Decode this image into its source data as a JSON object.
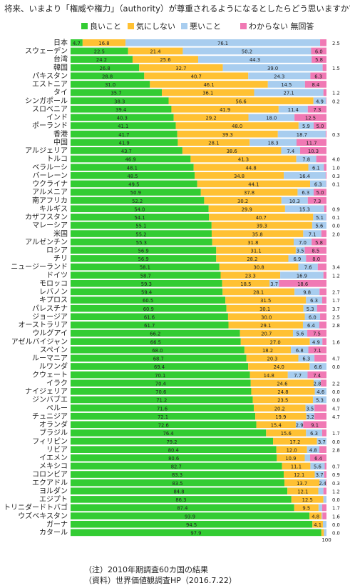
{
  "title": "将来、いまより「権威や権力」（authority）が尊重されるようになるとしたらどう思いますか？",
  "notes": {
    "note": "（注）2010年期調査60カ国の結果",
    "source": "（資料）世界価値観調査HP（2016.7.22）"
  },
  "chart_data": {
    "type": "bar",
    "stacked": true,
    "orientation": "horizontal",
    "percent_scale": true,
    "legend_position": "top",
    "series": [
      {
        "name": "良いこと",
        "color": "#33cc33"
      },
      {
        "name": "気にしない",
        "color": "#ffc133"
      },
      {
        "name": "悪いこと",
        "color": "#a8cdef"
      },
      {
        "name": "わからない 無回答",
        "color": "#f079b4"
      }
    ],
    "rows": [
      {
        "country": "日本",
        "values": [
          4.7,
          16.8,
          76.1,
          2.5
        ]
      },
      {
        "country": "スウェーデン",
        "values": [
          22.5,
          21.4,
          50.2,
          6.0
        ]
      },
      {
        "country": "台湾",
        "values": [
          24.2,
          25.6,
          44.3,
          5.8
        ]
      },
      {
        "country": "韓国",
        "values": [
          26.8,
          32.7,
          39.0,
          1.5
        ]
      },
      {
        "country": "パキスタン",
        "values": [
          28.8,
          40.7,
          24.3,
          6.3
        ]
      },
      {
        "country": "エストニア",
        "values": [
          31.0,
          46.1,
          14.5,
          8.4
        ]
      },
      {
        "country": "タイ",
        "values": [
          35.7,
          36.1,
          27.1,
          1.2
        ]
      },
      {
        "country": "シンガポール",
        "values": [
          38.3,
          56.6,
          4.9,
          0.2
        ]
      },
      {
        "country": "スロベニア",
        "values": [
          39.4,
          41.9,
          11.4,
          7.3
        ]
      },
      {
        "country": "インド",
        "values": [
          40.3,
          29.2,
          18.0,
          12.5
        ]
      },
      {
        "country": "ポーランド",
        "values": [
          41.1,
          48.0,
          5.9,
          5.0
        ]
      },
      {
        "country": "香港",
        "values": [
          41.7,
          39.3,
          18.7,
          0.3
        ]
      },
      {
        "country": "中国",
        "values": [
          41.9,
          28.1,
          18.3,
          11.7
        ]
      },
      {
        "country": "アルジェリア",
        "values": [
          43.7,
          38.6,
          7.4,
          10.3
        ]
      },
      {
        "country": "トルコ",
        "values": [
          46.9,
          41.3,
          7.8,
          4.0
        ]
      },
      {
        "country": "ベラルーシ",
        "values": [
          48.1,
          44.8,
          6.1,
          1.0
        ]
      },
      {
        "country": "バーレーン",
        "values": [
          48.5,
          34.8,
          16.4,
          0.3
        ]
      },
      {
        "country": "ウクライナ",
        "values": [
          49.5,
          44.1,
          6.3,
          0.1
        ]
      },
      {
        "country": "アルメニア",
        "values": [
          50.9,
          37.8,
          6.3,
          5.0
        ]
      },
      {
        "country": "南アフリカ",
        "values": [
          52.2,
          30.2,
          10.3,
          7.3
        ]
      },
      {
        "country": "キルギス",
        "values": [
          54.0,
          29.9,
          15.3,
          0.9
        ]
      },
      {
        "country": "カザフスタン",
        "values": [
          54.1,
          40.7,
          5.1,
          0.1
        ]
      },
      {
        "country": "マレーシア",
        "values": [
          55.1,
          39.3,
          5.6,
          0.0
        ]
      },
      {
        "country": "米国",
        "values": [
          55.2,
          35.8,
          7.1,
          2.0
        ]
      },
      {
        "country": "アルゼンチン",
        "values": [
          55.3,
          31.8,
          7.0,
          5.8
        ]
      },
      {
        "country": "ロシア",
        "values": [
          56.9,
          31.1,
          3.5,
          8.5
        ]
      },
      {
        "country": "チリ",
        "values": [
          56.9,
          28.2,
          6.9,
          8.0
        ]
      },
      {
        "country": "ニュージーランド",
        "values": [
          58.1,
          30.8,
          7.6,
          3.4
        ]
      },
      {
        "country": "ドイツ",
        "values": [
          58.7,
          23.3,
          16.9,
          1.2
        ]
      },
      {
        "country": "モロッコ",
        "values": [
          59.3,
          18.5,
          3.7,
          18.6
        ]
      },
      {
        "country": "レバノン",
        "values": [
          59.4,
          28.1,
          9.8,
          2.7
        ]
      },
      {
        "country": "キプロス",
        "values": [
          60.5,
          31.5,
          6.3,
          1.7
        ]
      },
      {
        "country": "パレスチナ",
        "values": [
          60.9,
          30.1,
          5.3,
          3.7
        ]
      },
      {
        "country": "ジョージア",
        "values": [
          61.6,
          30.0,
          6.0,
          2.5
        ]
      },
      {
        "country": "オーストラリア",
        "values": [
          61.7,
          29.1,
          6.4,
          2.8
        ]
      },
      {
        "country": "ウルグアイ",
        "values": [
          66.2,
          20.7,
          5.6,
          7.5
        ]
      },
      {
        "country": "アゼルバイジャン",
        "values": [
          66.5,
          27.0,
          4.9,
          1.6
        ]
      },
      {
        "country": "スペイン",
        "values": [
          68.0,
          18.2,
          6.8,
          7.1
        ]
      },
      {
        "country": "ルーマニア",
        "values": [
          68.7,
          20.3,
          6.3,
          4.7
        ]
      },
      {
        "country": "ルワンダ",
        "values": [
          69.4,
          24.0,
          6.6,
          0.0
        ]
      },
      {
        "country": "クウェート",
        "values": [
          70.1,
          14.8,
          7.7,
          7.4
        ]
      },
      {
        "country": "イラク",
        "values": [
          70.4,
          24.6,
          2.8,
          2.2
        ]
      },
      {
        "country": "ナイジェリア",
        "values": [
          70.6,
          24.8,
          4.6,
          0.0
        ]
      },
      {
        "country": "ジンバブエ",
        "values": [
          71.2,
          23.5,
          5.3,
          0.0
        ]
      },
      {
        "country": "ペルー",
        "values": [
          71.6,
          20.2,
          3.5,
          4.7
        ]
      },
      {
        "country": "チュニジア",
        "values": [
          72.1,
          19.9,
          3.2,
          4.7
        ]
      },
      {
        "country": "オランダ",
        "values": [
          72.6,
          15.4,
          2.9,
          9.1
        ]
      },
      {
        "country": "ブラジル",
        "values": [
          76.4,
          15.6,
          6.3,
          1.7
        ]
      },
      {
        "country": "フィリピン",
        "values": [
          79.2,
          17.2,
          3.7,
          0.0
        ]
      },
      {
        "country": "リビア",
        "values": [
          80.4,
          12.0,
          4.8,
          2.8
        ]
      },
      {
        "country": "イエメン",
        "values": [
          80.6,
          10.9,
          2.1,
          6.4
        ]
      },
      {
        "country": "メキシコ",
        "values": [
          82.7,
          11.1,
          5.6,
          0.7
        ]
      },
      {
        "country": "コロンビア",
        "values": [
          83.3,
          12.1,
          3.7,
          0.9
        ]
      },
      {
        "country": "エクアドル",
        "values": [
          83.5,
          13.7,
          2.4,
          0.3
        ]
      },
      {
        "country": "ヨルダン",
        "values": [
          84.8,
          12.1,
          2.0,
          1.2
        ]
      },
      {
        "country": "エジプト",
        "values": [
          86.3,
          12.5,
          1.2,
          0.0
        ]
      },
      {
        "country": "トリニダードトバゴ",
        "values": [
          87.4,
          9.5,
          1.4,
          1.7
        ]
      },
      {
        "country": "ウズベキスタン",
        "values": [
          93.9,
          4.8,
          0.3,
          1.6
        ]
      },
      {
        "country": "ガーナ",
        "values": [
          94.5,
          4.1,
          1.4,
          0.0
        ]
      },
      {
        "country": "カタール",
        "values": [
          97.9,
          1.0,
          1.0,
          0.0
        ]
      }
    ]
  }
}
